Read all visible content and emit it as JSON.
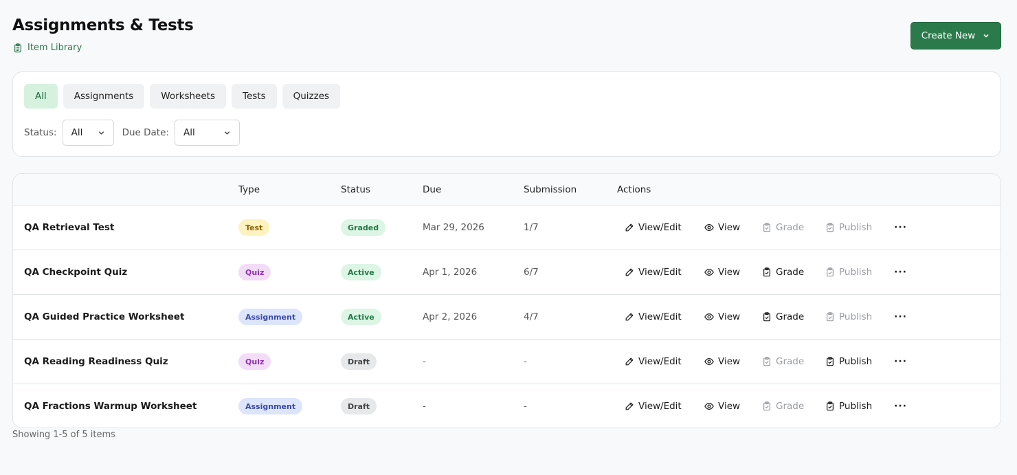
{
  "header": {
    "title": "Assignments & Tests",
    "library_link": "Item Library",
    "create_button": "Create New"
  },
  "filters": {
    "tabs": [
      "All",
      "Assignments",
      "Worksheets",
      "Tests",
      "Quizzes"
    ],
    "active_tab": "All",
    "status_label": "Status:",
    "status_value": "All",
    "due_label": "Due Date:",
    "due_value": "All"
  },
  "table": {
    "columns": [
      "",
      "Type",
      "Status",
      "Due",
      "Submission",
      "Actions"
    ],
    "rows": [
      {
        "name": "QA Retrieval Test",
        "type": "Test",
        "status": "Graded",
        "due": "Mar 29, 2026",
        "submission": "1/7",
        "view_edit": "View/Edit",
        "view": "View",
        "grade": "Grade",
        "publish": "Publish",
        "grade_enabled": false,
        "publish_enabled": false
      },
      {
        "name": "QA Checkpoint Quiz",
        "type": "Quiz",
        "status": "Active",
        "due": "Apr 1, 2026",
        "submission": "6/7",
        "view_edit": "View/Edit",
        "view": "View",
        "grade": "Grade",
        "publish": "Publish",
        "grade_enabled": true,
        "publish_enabled": false
      },
      {
        "name": "QA Guided Practice Worksheet",
        "type": "Assignment",
        "status": "Active",
        "due": "Apr 2, 2026",
        "submission": "4/7",
        "view_edit": "View/Edit",
        "view": "View",
        "grade": "Grade",
        "publish": "Publish",
        "grade_enabled": true,
        "publish_enabled": false
      },
      {
        "name": "QA Reading Readiness Quiz",
        "type": "Quiz",
        "status": "Draft",
        "due": "-",
        "submission": "-",
        "view_edit": "View/Edit",
        "view": "View",
        "grade": "Grade",
        "publish": "Publish",
        "grade_enabled": false,
        "publish_enabled": true
      },
      {
        "name": "QA Fractions Warmup Worksheet",
        "type": "Assignment",
        "status": "Draft",
        "due": "-",
        "submission": "-",
        "view_edit": "View/Edit",
        "view": "View",
        "grade": "Grade",
        "publish": "Publish",
        "grade_enabled": false,
        "publish_enabled": true
      }
    ],
    "more_icon": "···"
  },
  "footer": {
    "summary": "Showing 1-5 of 5 items"
  },
  "colors": {
    "accent": "#2b7a4b",
    "active_tab_bg": "#d6f2df"
  },
  "icons": {
    "library": "clipboard-icon",
    "create_dropdown": "chevron-down-icon",
    "view_edit": "pencil-icon",
    "view": "eye-icon",
    "grade": "clipboard-check-icon",
    "publish": "clipboard-check-icon",
    "more": "more-horizontal-icon"
  }
}
